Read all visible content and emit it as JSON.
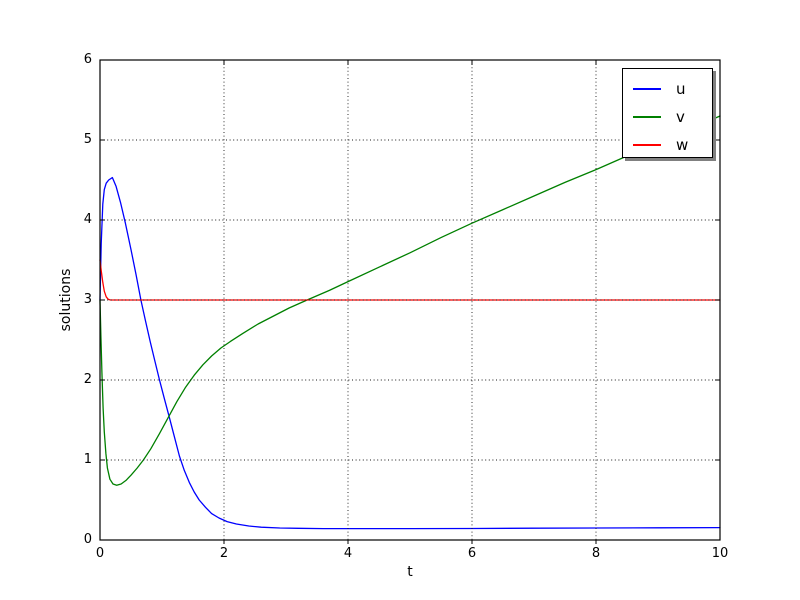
{
  "chart_data": {
    "type": "line",
    "title": "",
    "xlabel": "t",
    "ylabel": "solutions",
    "xlim": [
      0,
      10
    ],
    "ylim": [
      0,
      6
    ],
    "x_ticks": [
      0,
      2,
      4,
      6,
      8,
      10
    ],
    "y_ticks": [
      0,
      1,
      2,
      3,
      4,
      5,
      6
    ],
    "grid": true,
    "grid_style": "dotted",
    "grid_above_lines": true,
    "background": "#ffffff",
    "axis_color": "#000000",
    "legend": {
      "position": "upper-right",
      "shadow": true,
      "shadow_color": "#808080"
    },
    "series": [
      {
        "name": "u",
        "color": "#0000ff",
        "x": [
          0,
          0.02,
          0.045,
          0.07,
          0.1,
          0.14,
          0.2,
          0.26,
          0.33,
          0.41,
          0.5,
          0.58,
          0.66,
          0.73,
          0.81,
          0.89,
          0.96,
          1.04,
          1.12,
          1.2,
          1.28,
          1.36,
          1.44,
          1.52,
          1.6,
          1.7,
          1.8,
          1.92,
          2.05,
          2.2,
          2.4,
          2.6,
          2.9,
          3.2,
          3.6,
          4.0,
          5.0,
          6.0,
          7.0,
          8.0,
          9.0,
          10.0
        ],
        "y": [
          3.0,
          3.7,
          4.2,
          4.38,
          4.46,
          4.5,
          4.53,
          4.42,
          4.22,
          3.96,
          3.63,
          3.32,
          3.0,
          2.75,
          2.48,
          2.22,
          2.0,
          1.76,
          1.53,
          1.29,
          1.05,
          0.87,
          0.72,
          0.6,
          0.5,
          0.41,
          0.33,
          0.275,
          0.23,
          0.2,
          0.175,
          0.16,
          0.15,
          0.146,
          0.143,
          0.142,
          0.142,
          0.144,
          0.147,
          0.15,
          0.152,
          0.155
        ]
      },
      {
        "name": "v",
        "color": "#008000",
        "x": [
          0,
          0.015,
          0.03,
          0.05,
          0.07,
          0.095,
          0.12,
          0.16,
          0.21,
          0.27,
          0.34,
          0.42,
          0.5,
          0.6,
          0.7,
          0.82,
          0.96,
          1.1,
          1.24,
          1.38,
          1.52,
          1.66,
          1.8,
          1.95,
          2.1,
          2.3,
          2.55,
          2.8,
          3.05,
          3.34,
          3.7,
          4.0,
          4.5,
          5.0,
          5.5,
          6.0,
          6.5,
          7.0,
          7.5,
          8.0,
          8.5,
          9.0,
          9.5,
          10.0
        ],
        "y": [
          3.0,
          2.55,
          2.1,
          1.65,
          1.35,
          1.08,
          0.9,
          0.76,
          0.7,
          0.685,
          0.7,
          0.745,
          0.81,
          0.9,
          1.0,
          1.14,
          1.33,
          1.53,
          1.73,
          1.91,
          2.06,
          2.19,
          2.3,
          2.4,
          2.48,
          2.58,
          2.7,
          2.8,
          2.9,
          3.0,
          3.12,
          3.23,
          3.41,
          3.59,
          3.78,
          3.96,
          4.13,
          4.3,
          4.47,
          4.63,
          4.8,
          4.97,
          5.13,
          5.3
        ]
      },
      {
        "name": "w",
        "color": "#ff0000",
        "x": [
          0,
          0.02,
          0.045,
          0.07,
          0.1,
          0.13,
          0.17,
          0.25,
          0.5,
          1.0,
          2.0,
          3.0,
          4.0,
          5.0,
          6.0,
          7.0,
          8.0,
          9.0,
          10.0
        ],
        "y": [
          3.5,
          3.37,
          3.22,
          3.11,
          3.04,
          3.01,
          3.0,
          3.0,
          3.0,
          3.0,
          3.0,
          3.0,
          3.0,
          3.0,
          3.0,
          3.0,
          3.0,
          3.0,
          3.0
        ]
      }
    ]
  }
}
